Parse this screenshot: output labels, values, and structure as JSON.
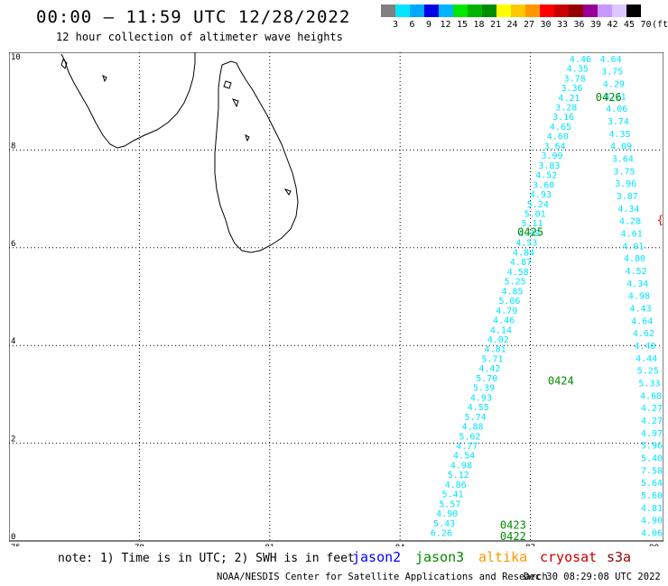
{
  "header": {
    "title": "00:00 – 11:59 UTC 12/28/2022",
    "subtitle": "12 hour collection of altimeter wave heights"
  },
  "legend": {
    "colors": [
      "#808080",
      "#00e5ff",
      "#00a8ff",
      "#0000e6",
      "#00b4ff",
      "#00e600",
      "#00b400",
      "#008c00",
      "#ffff00",
      "#ffc800",
      "#ff9600",
      "#ff0000",
      "#c80000",
      "#960000",
      "#960096",
      "#c896ff",
      "#dcc8ff",
      "#000000"
    ],
    "labels": [
      "3",
      "6",
      "9",
      "12",
      "15",
      "18",
      "21",
      "24",
      "27",
      "30",
      "33",
      "36",
      "39",
      "42",
      "45",
      "70",
      "(ft)"
    ]
  },
  "map": {
    "lon_ticks": [
      "75",
      "78",
      "81",
      "84",
      "87",
      "90"
    ],
    "lat_ticks": [
      "0",
      "2",
      "4",
      "6",
      "8",
      "10"
    ],
    "pass_labels": [
      {
        "text": "0423",
        "lon": 86.3,
        "lat": 0.25
      },
      {
        "text": "0422",
        "lon": 86.3,
        "lat": -0.05
      },
      {
        "text": "0424",
        "lon": 87.4,
        "lat": 3.2
      },
      {
        "text": "0425",
        "lon": 86.7,
        "lat": 6.25
      },
      {
        "text": "0426",
        "lon": 88.5,
        "lat": 9.0
      }
    ],
    "tracks": [
      {
        "name": "track-ascending-west",
        "lon0": 84.7,
        "lat0": 0.1,
        "lon1": 87.9,
        "lat1": 9.8,
        "values": [
          "6.26",
          "5.43",
          "4.90",
          "5.57",
          "5.41",
          "4.86",
          "5.12",
          "4.98",
          "4.54",
          "4.77",
          "5.62",
          "4.88",
          "5.74",
          "4.55",
          "4.93",
          "5.39",
          "5.70",
          "4.42",
          "5.71",
          "4.81",
          "4.02",
          "4.14",
          "4.46",
          "4.79",
          "5.06",
          "4.85",
          "5.25",
          "4.58",
          "4.87",
          "4.84",
          "4.53",
          "4.39",
          "5.11",
          "5.01",
          "5.24",
          "4.93",
          "3.60",
          "4.52",
          "3.83",
          "3.99",
          "3.64",
          "4.60",
          "4.65",
          "3.16",
          "3.28",
          "4.21",
          "3.36",
          "3.78",
          "4.35",
          "4.46"
        ]
      },
      {
        "name": "track-descending-east",
        "lon0": 88.6,
        "lat0": 9.8,
        "lon1": 89.9,
        "lat1": 0.1,
        "values": [
          "4.64",
          "3.75",
          "4.29",
          "4.21",
          "4.06",
          "3.74",
          "4.35",
          "4.09",
          "3.64",
          "3.75",
          "3.96",
          "3.87",
          "4.34",
          "4.28",
          "4.61",
          "4.91",
          "4.80",
          "4.52",
          "4.34",
          "4.98",
          "4.43",
          "4.64",
          "4.62",
          "4.40",
          "4.44",
          "5.25",
          "5.33",
          "4.68",
          "4.27",
          "4.27",
          "4.97",
          "5.96",
          "5.40",
          "7.58",
          "5.64",
          "5.60",
          "4.81",
          "4.90",
          "4.06"
        ]
      }
    ]
  },
  "footer": {
    "note": "note: 1) Time is in UTC; 2) SWH is in feet",
    "satellites": [
      {
        "name": "jason2",
        "color": "#0000ff"
      },
      {
        "name": "jason3",
        "color": "#008c00"
      },
      {
        "name": "altika",
        "color": "#ff9600"
      },
      {
        "name": "cryosat",
        "color": "#c80000"
      },
      {
        "name": "s3a",
        "color": "#960000"
      }
    ],
    "credit": "NOAA/NESDIS Center for Satellite Applications and Research",
    "timestamp": "Dec 30 08:29:08 UTC 2022"
  }
}
